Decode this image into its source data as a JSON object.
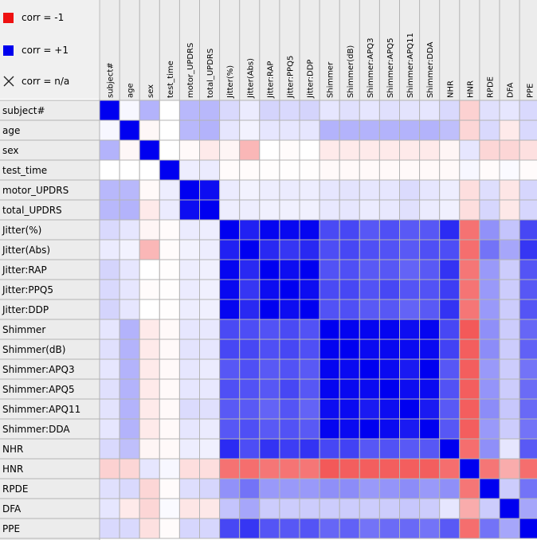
{
  "legend": {
    "items": [
      {
        "label": "corr = -1",
        "color": "#ee1111",
        "kind": "swatch"
      },
      {
        "label": "corr = +1",
        "color": "#0000ee",
        "kind": "swatch"
      },
      {
        "label": "corr = n/a",
        "color": "#222222",
        "kind": "cross"
      }
    ]
  },
  "colors": {
    "negative": "#f03030",
    "positive": "#0000f0",
    "neutral": "#ffffff",
    "grid": "#b4b4b4",
    "header_bg": "#ececec"
  },
  "chart_data": {
    "type": "heatmap",
    "title": "",
    "value_range": [
      -1,
      1
    ],
    "row_labels": [
      "subject#",
      "age",
      "sex",
      "test_time",
      "motor_UPDRS",
      "total_UPDRS",
      "Jitter(%)",
      "Jitter(Abs)",
      "Jitter:RAP",
      "Jitter:PPQ5",
      "Jitter:DDP",
      "Shimmer",
      "Shimmer(dB)",
      "Shimmer:APQ3",
      "Shimmer:APQ5",
      "Shimmer:APQ11",
      "Shimmer:DDA",
      "NHR",
      "HNR",
      "RPDE",
      "DFA",
      "PPE"
    ],
    "column_labels": [
      "subject#",
      "age",
      "sex",
      "test_time",
      "motor_UPDRS",
      "total_UPDRS",
      "Jitter(%)",
      "Jitter(Abs)",
      "Jitter:RAP",
      "Jitter:PPQ5",
      "Jitter:DDP",
      "Shimmer",
      "Shimmer(dB)",
      "Shimmer:APQ3",
      "Shimmer:APQ5",
      "Shimmer:APQ11",
      "Shimmer:DDA",
      "NHR",
      "HNR",
      "RPDE",
      "DFA",
      "PPE"
    ],
    "values": [
      [
        1.0,
        0.03,
        0.3,
        0.0,
        0.28,
        0.28,
        0.15,
        0.08,
        0.17,
        0.15,
        0.17,
        0.1,
        0.12,
        0.1,
        0.12,
        0.11,
        0.1,
        0.15,
        -0.22,
        0.12,
        0.1,
        0.15
      ],
      [
        0.03,
        1.0,
        -0.04,
        0.0,
        0.28,
        0.3,
        0.1,
        0.05,
        0.1,
        0.1,
        0.1,
        0.3,
        0.3,
        0.3,
        0.3,
        0.3,
        0.3,
        0.25,
        -0.2,
        0.15,
        -0.1,
        0.15
      ],
      [
        0.3,
        -0.04,
        1.0,
        0.0,
        -0.03,
        -0.1,
        -0.05,
        -0.35,
        0.0,
        -0.02,
        0.0,
        -0.1,
        -0.1,
        -0.1,
        -0.1,
        -0.1,
        -0.1,
        -0.05,
        0.1,
        -0.2,
        -0.2,
        -0.15
      ],
      [
        0.0,
        0.0,
        0.0,
        1.0,
        0.07,
        0.08,
        -0.02,
        -0.02,
        -0.01,
        -0.01,
        -0.01,
        -0.03,
        -0.03,
        -0.03,
        -0.03,
        -0.03,
        -0.03,
        -0.03,
        0.03,
        -0.02,
        0.02,
        -0.02
      ],
      [
        0.28,
        0.28,
        -0.03,
        0.07,
        1.0,
        0.95,
        0.08,
        0.05,
        0.07,
        0.08,
        0.07,
        0.1,
        0.11,
        0.1,
        0.1,
        0.14,
        0.1,
        0.07,
        -0.16,
        0.13,
        -0.12,
        0.16
      ],
      [
        0.28,
        0.3,
        -0.1,
        0.08,
        0.95,
        1.0,
        0.07,
        0.07,
        0.06,
        0.06,
        0.06,
        0.09,
        0.1,
        0.08,
        0.09,
        0.12,
        0.08,
        0.06,
        -0.16,
        0.16,
        -0.11,
        0.16
      ],
      [
        0.15,
        0.1,
        -0.05,
        -0.02,
        0.08,
        0.07,
        1.0,
        0.87,
        0.98,
        0.97,
        0.98,
        0.71,
        0.72,
        0.66,
        0.69,
        0.65,
        0.66,
        0.83,
        -0.68,
        0.43,
        0.23,
        0.72
      ],
      [
        0.08,
        0.05,
        -0.35,
        -0.02,
        0.05,
        0.07,
        0.87,
        1.0,
        0.84,
        0.79,
        0.84,
        0.7,
        0.72,
        0.69,
        0.68,
        0.65,
        0.69,
        0.7,
        -0.7,
        0.55,
        0.35,
        0.79
      ],
      [
        0.17,
        0.1,
        0.0,
        -0.01,
        0.07,
        0.06,
        0.98,
        0.84,
        1.0,
        0.95,
        1.0,
        0.68,
        0.69,
        0.65,
        0.66,
        0.61,
        0.65,
        0.8,
        -0.66,
        0.4,
        0.2,
        0.67
      ],
      [
        0.15,
        0.1,
        -0.02,
        -0.01,
        0.08,
        0.06,
        0.97,
        0.79,
        0.95,
        1.0,
        0.95,
        0.71,
        0.72,
        0.68,
        0.72,
        0.67,
        0.68,
        0.76,
        -0.67,
        0.4,
        0.2,
        0.66
      ],
      [
        0.17,
        0.1,
        0.0,
        -0.01,
        0.07,
        0.06,
        0.98,
        0.84,
        1.0,
        0.95,
        1.0,
        0.68,
        0.69,
        0.65,
        0.66,
        0.61,
        0.65,
        0.8,
        -0.66,
        0.4,
        0.2,
        0.67
      ],
      [
        0.1,
        0.3,
        -0.1,
        -0.03,
        0.1,
        0.09,
        0.71,
        0.7,
        0.68,
        0.71,
        0.68,
        1.0,
        0.99,
        0.98,
        0.98,
        0.95,
        0.98,
        0.72,
        -0.8,
        0.44,
        0.2,
        0.6
      ],
      [
        0.12,
        0.3,
        -0.1,
        -0.03,
        0.11,
        0.1,
        0.72,
        0.72,
        0.69,
        0.72,
        0.69,
        0.99,
        1.0,
        0.96,
        0.97,
        0.96,
        0.96,
        0.74,
        -0.78,
        0.45,
        0.2,
        0.62
      ],
      [
        0.1,
        0.3,
        -0.1,
        -0.03,
        0.1,
        0.08,
        0.66,
        0.69,
        0.65,
        0.68,
        0.65,
        0.98,
        0.96,
        1.0,
        0.96,
        0.9,
        1.0,
        0.66,
        -0.78,
        0.4,
        0.2,
        0.55
      ],
      [
        0.12,
        0.3,
        -0.1,
        -0.03,
        0.1,
        0.09,
        0.69,
        0.68,
        0.66,
        0.72,
        0.66,
        0.98,
        0.97,
        0.96,
        1.0,
        0.95,
        0.96,
        0.68,
        -0.78,
        0.42,
        0.2,
        0.58
      ],
      [
        0.11,
        0.3,
        -0.1,
        -0.03,
        0.14,
        0.12,
        0.65,
        0.65,
        0.61,
        0.67,
        0.61,
        0.95,
        0.96,
        0.9,
        0.95,
        1.0,
        0.9,
        0.65,
        -0.78,
        0.45,
        0.22,
        0.59
      ],
      [
        0.1,
        0.3,
        -0.1,
        -0.03,
        0.1,
        0.08,
        0.66,
        0.69,
        0.65,
        0.68,
        0.65,
        0.98,
        0.96,
        1.0,
        0.96,
        0.9,
        1.0,
        0.66,
        -0.78,
        0.4,
        0.2,
        0.55
      ],
      [
        0.15,
        0.25,
        -0.05,
        -0.03,
        0.07,
        0.06,
        0.83,
        0.7,
        0.8,
        0.76,
        0.8,
        0.72,
        0.74,
        0.66,
        0.68,
        0.65,
        0.66,
        1.0,
        -0.7,
        0.44,
        0.1,
        0.65
      ],
      [
        -0.22,
        -0.2,
        0.1,
        0.03,
        -0.16,
        -0.16,
        -0.68,
        -0.7,
        -0.66,
        -0.67,
        -0.66,
        -0.8,
        -0.78,
        -0.78,
        -0.78,
        -0.78,
        -0.78,
        -0.7,
        1.0,
        -0.66,
        -0.4,
        -0.7
      ],
      [
        0.12,
        0.15,
        -0.2,
        -0.02,
        0.13,
        0.16,
        0.43,
        0.55,
        0.4,
        0.4,
        0.4,
        0.44,
        0.45,
        0.4,
        0.42,
        0.45,
        0.4,
        0.44,
        -0.66,
        1.0,
        0.2,
        0.55
      ],
      [
        0.1,
        -0.1,
        -0.2,
        0.02,
        -0.12,
        -0.11,
        0.23,
        0.35,
        0.2,
        0.2,
        0.2,
        0.2,
        0.2,
        0.2,
        0.2,
        0.22,
        0.2,
        0.1,
        -0.4,
        0.2,
        1.0,
        0.35
      ],
      [
        0.15,
        0.15,
        -0.15,
        -0.02,
        0.16,
        0.16,
        0.72,
        0.79,
        0.67,
        0.66,
        0.67,
        0.6,
        0.62,
        0.55,
        0.58,
        0.59,
        0.55,
        0.65,
        -0.7,
        0.55,
        0.35,
        1.0
      ]
    ]
  }
}
